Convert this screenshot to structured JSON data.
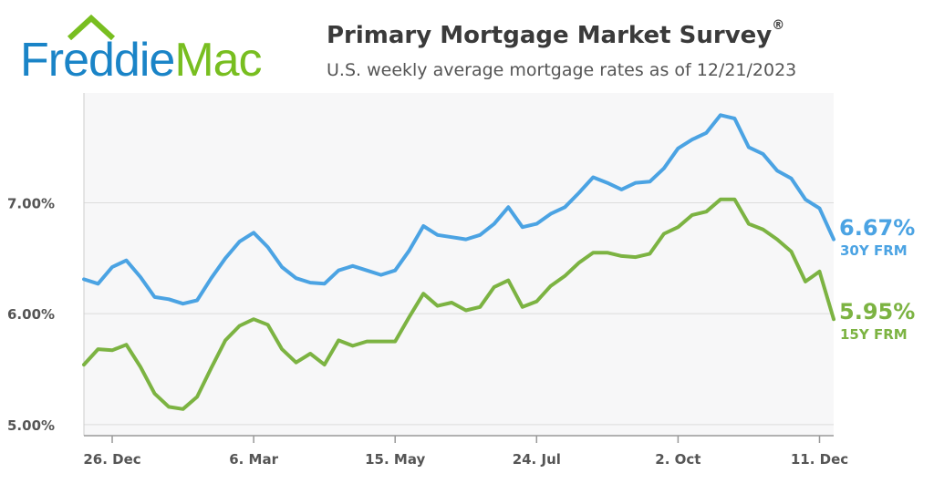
{
  "header": {
    "logo": {
      "text": "FreddieMac",
      "primary_color": "#1a84c7",
      "accent_color": "#78be20"
    },
    "title": "Primary Mortgage Market Survey",
    "title_mark": "®",
    "subtitle": "U.S. weekly average mortgage rates as of 12/21/2023"
  },
  "chart_data": {
    "type": "line",
    "title": "Primary Mortgage Market Survey",
    "subtitle": "U.S. weekly average mortgage rates as of 12/21/2023",
    "xlabel": "",
    "ylabel": "",
    "ylim": [
      4.9,
      7.99
    ],
    "yticks": [
      5.0,
      6.0,
      7.0
    ],
    "ytick_labels": [
      "5.00%",
      "6.00%",
      "7.00%"
    ],
    "xtick_labels": [
      "26. Dec",
      "6. Mar",
      "15. May",
      "24. Jul",
      "2. Oct",
      "11. Dec"
    ],
    "xtick_index": [
      2,
      12,
      22,
      32,
      42,
      52
    ],
    "grid": true,
    "x": [
      "2022-12-15",
      "2022-12-22",
      "2022-12-29",
      "2023-01-05",
      "2023-01-12",
      "2023-01-19",
      "2023-01-26",
      "2023-02-02",
      "2023-02-09",
      "2023-02-16",
      "2023-02-23",
      "2023-03-02",
      "2023-03-09",
      "2023-03-16",
      "2023-03-23",
      "2023-03-30",
      "2023-04-06",
      "2023-04-13",
      "2023-04-20",
      "2023-04-27",
      "2023-05-04",
      "2023-05-11",
      "2023-05-18",
      "2023-05-25",
      "2023-06-01",
      "2023-06-08",
      "2023-06-15",
      "2023-06-22",
      "2023-06-29",
      "2023-07-06",
      "2023-07-13",
      "2023-07-20",
      "2023-07-27",
      "2023-08-03",
      "2023-08-10",
      "2023-08-17",
      "2023-08-24",
      "2023-08-31",
      "2023-09-07",
      "2023-09-14",
      "2023-09-21",
      "2023-09-28",
      "2023-10-05",
      "2023-10-12",
      "2023-10-19",
      "2023-10-26",
      "2023-11-02",
      "2023-11-09",
      "2023-11-16",
      "2023-11-22",
      "2023-11-30",
      "2023-12-07",
      "2023-12-14",
      "2023-12-21"
    ],
    "series": [
      {
        "name": "30Y FRM",
        "color": "#4ba3e3",
        "last_value_label": "6.67%",
        "values": [
          6.31,
          6.27,
          6.42,
          6.48,
          6.33,
          6.15,
          6.13,
          6.09,
          6.12,
          6.32,
          6.5,
          6.65,
          6.73,
          6.6,
          6.42,
          6.32,
          6.28,
          6.27,
          6.39,
          6.43,
          6.39,
          6.35,
          6.39,
          6.57,
          6.79,
          6.71,
          6.69,
          6.67,
          6.71,
          6.81,
          6.96,
          6.78,
          6.81,
          6.9,
          6.96,
          7.09,
          7.23,
          7.18,
          7.12,
          7.18,
          7.19,
          7.31,
          7.49,
          7.57,
          7.63,
          7.79,
          7.76,
          7.5,
          7.44,
          7.29,
          7.22,
          7.03,
          6.95,
          6.67
        ]
      },
      {
        "name": "15Y FRM",
        "color": "#7cb342",
        "last_value_label": "5.95%",
        "values": [
          5.54,
          5.68,
          5.67,
          5.72,
          5.52,
          5.28,
          5.16,
          5.14,
          5.25,
          5.51,
          5.76,
          5.89,
          5.95,
          5.9,
          5.68,
          5.56,
          5.64,
          5.54,
          5.76,
          5.71,
          5.75,
          5.75,
          5.75,
          5.97,
          6.18,
          6.07,
          6.1,
          6.03,
          6.06,
          6.24,
          6.3,
          6.06,
          6.11,
          6.25,
          6.34,
          6.46,
          6.55,
          6.55,
          6.52,
          6.51,
          6.54,
          6.72,
          6.78,
          6.89,
          6.92,
          7.03,
          7.03,
          6.81,
          6.76,
          6.67,
          6.56,
          6.29,
          6.38,
          5.95
        ]
      }
    ]
  }
}
